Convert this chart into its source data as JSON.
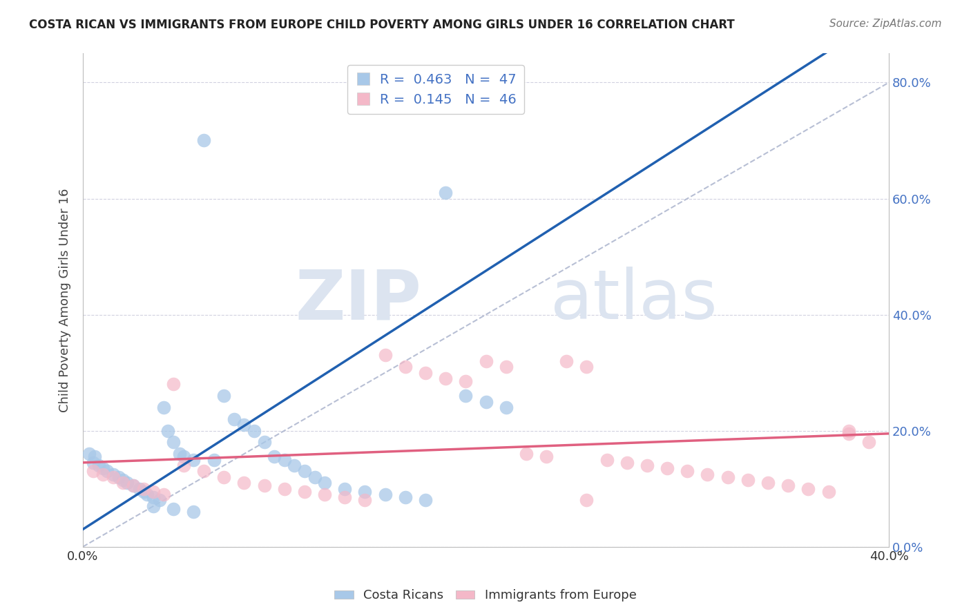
{
  "title": "COSTA RICAN VS IMMIGRANTS FROM EUROPE CHILD POVERTY AMONG GIRLS UNDER 16 CORRELATION CHART",
  "source": "Source: ZipAtlas.com",
  "ylabel": "Child Poverty Among Girls Under 16",
  "xlim": [
    0.0,
    0.4
  ],
  "ylim": [
    0.0,
    0.85
  ],
  "xticks_show": [
    0.0,
    0.4
  ],
  "yticks": [
    0.0,
    0.2,
    0.4,
    0.6,
    0.8
  ],
  "blue_R": 0.463,
  "blue_N": 47,
  "pink_R": 0.145,
  "pink_N": 46,
  "blue_color": "#a8c8e8",
  "pink_color": "#f4b8c8",
  "blue_line_color": "#2060b0",
  "pink_line_color": "#e06080",
  "ref_line_color": "#b0b8d0",
  "watermark_zip": "ZIP",
  "watermark_atlas": "atlas",
  "watermark_color": "#dce4f0",
  "legend_label_blue": "Costa Ricans",
  "legend_label_pink": "Immigrants from Europe",
  "blue_scatter_x": [
    0.005,
    0.008,
    0.01,
    0.012,
    0.015,
    0.018,
    0.02,
    0.022,
    0.025,
    0.028,
    0.03,
    0.032,
    0.035,
    0.038,
    0.04,
    0.042,
    0.045,
    0.048,
    0.05,
    0.055,
    0.06,
    0.065,
    0.07,
    0.075,
    0.08,
    0.085,
    0.09,
    0.095,
    0.1,
    0.105,
    0.11,
    0.115,
    0.12,
    0.13,
    0.14,
    0.15,
    0.16,
    0.17,
    0.18,
    0.19,
    0.2,
    0.21,
    0.003,
    0.006,
    0.035,
    0.045,
    0.055
  ],
  "blue_scatter_y": [
    0.145,
    0.14,
    0.135,
    0.13,
    0.125,
    0.12,
    0.115,
    0.11,
    0.105,
    0.1,
    0.095,
    0.09,
    0.085,
    0.08,
    0.24,
    0.2,
    0.18,
    0.16,
    0.155,
    0.15,
    0.7,
    0.15,
    0.26,
    0.22,
    0.21,
    0.2,
    0.18,
    0.155,
    0.15,
    0.14,
    0.13,
    0.12,
    0.11,
    0.1,
    0.095,
    0.09,
    0.085,
    0.08,
    0.61,
    0.26,
    0.25,
    0.24,
    0.16,
    0.155,
    0.07,
    0.065,
    0.06
  ],
  "pink_scatter_x": [
    0.005,
    0.01,
    0.015,
    0.02,
    0.025,
    0.03,
    0.035,
    0.04,
    0.045,
    0.05,
    0.06,
    0.07,
    0.08,
    0.09,
    0.1,
    0.11,
    0.12,
    0.13,
    0.14,
    0.15,
    0.16,
    0.17,
    0.18,
    0.19,
    0.2,
    0.21,
    0.22,
    0.23,
    0.24,
    0.25,
    0.26,
    0.27,
    0.28,
    0.29,
    0.3,
    0.31,
    0.32,
    0.33,
    0.34,
    0.35,
    0.36,
    0.37,
    0.38,
    0.39,
    0.25,
    0.38
  ],
  "pink_scatter_y": [
    0.13,
    0.125,
    0.12,
    0.11,
    0.105,
    0.1,
    0.095,
    0.09,
    0.28,
    0.14,
    0.13,
    0.12,
    0.11,
    0.105,
    0.1,
    0.095,
    0.09,
    0.085,
    0.08,
    0.33,
    0.31,
    0.3,
    0.29,
    0.285,
    0.32,
    0.31,
    0.16,
    0.155,
    0.32,
    0.31,
    0.15,
    0.145,
    0.14,
    0.135,
    0.13,
    0.125,
    0.12,
    0.115,
    0.11,
    0.105,
    0.1,
    0.095,
    0.2,
    0.18,
    0.08,
    0.195
  ]
}
